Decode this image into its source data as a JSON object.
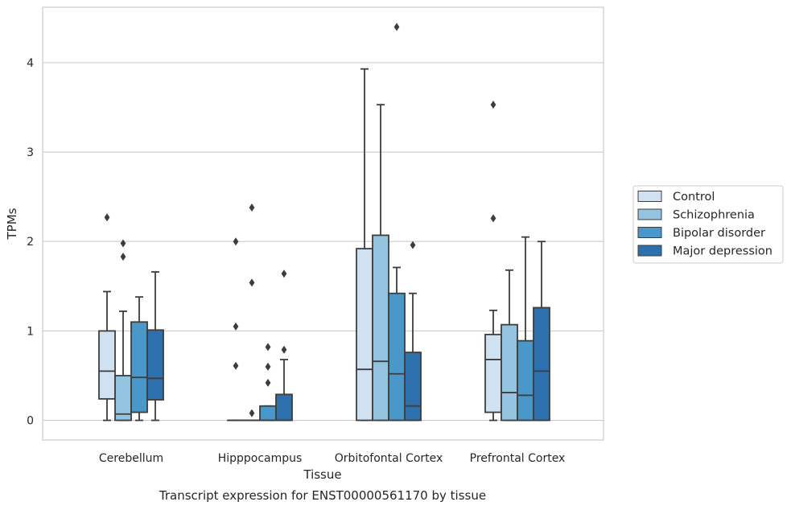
{
  "caption": "Transcript expression for ENST00000561170 by tissue",
  "chart_data": {
    "type": "box",
    "xlabel": "Tissue",
    "ylabel": "TPMs",
    "ylim": [
      -0.22,
      4.62
    ],
    "yticks": [
      0,
      1,
      2,
      3,
      4
    ],
    "grid": "horizontal",
    "legend_position": "right",
    "categories": [
      "Cerebellum",
      "Hipppocampus",
      "Orbitofontal Cortex",
      "Prefrontal Cortex"
    ],
    "series": [
      {
        "name": "Control",
        "color": "#d0e1f2",
        "boxes": [
          {
            "whislo": 0,
            "q1": 0.24,
            "med": 0.55,
            "q3": 1.0,
            "whishi": 1.44,
            "fliers": [
              2.27
            ]
          },
          {
            "whislo": 0,
            "q1": 0,
            "med": 0,
            "q3": 0,
            "whishi": 0,
            "fliers": [
              0.61,
              1.05,
              2.0
            ]
          },
          {
            "whislo": 0,
            "q1": 0,
            "med": 0.57,
            "q3": 1.92,
            "whishi": 3.93,
            "fliers": []
          },
          {
            "whislo": 0,
            "q1": 0.09,
            "med": 0.68,
            "q3": 0.96,
            "whishi": 1.23,
            "fliers": [
              2.26,
              3.53
            ]
          }
        ]
      },
      {
        "name": "Schizophrenia",
        "color": "#94c4df",
        "boxes": [
          {
            "whislo": 0,
            "q1": 0,
            "med": 0.07,
            "q3": 0.5,
            "whishi": 1.22,
            "fliers": [
              1.83,
              1.98
            ]
          },
          {
            "whislo": 0,
            "q1": 0,
            "med": 0,
            "q3": 0,
            "whishi": 0,
            "fliers": [
              0.08,
              1.54,
              2.38
            ]
          },
          {
            "whislo": 0,
            "q1": 0,
            "med": 0.66,
            "q3": 2.07,
            "whishi": 3.53,
            "fliers": []
          },
          {
            "whislo": 0,
            "q1": 0,
            "med": 0.31,
            "q3": 1.07,
            "whishi": 1.68,
            "fliers": []
          }
        ]
      },
      {
        "name": "Bipolar disorder",
        "color": "#4a98c9",
        "boxes": [
          {
            "whislo": 0,
            "q1": 0.09,
            "med": 0.48,
            "q3": 1.1,
            "whishi": 1.38,
            "fliers": []
          },
          {
            "whislo": 0,
            "q1": 0,
            "med": 0,
            "q3": 0.16,
            "whishi": 0.16,
            "fliers": [
              0.42,
              0.6,
              0.82
            ]
          },
          {
            "whislo": 0,
            "q1": 0,
            "med": 0.52,
            "q3": 1.42,
            "whishi": 1.71,
            "fliers": [
              4.4
            ]
          },
          {
            "whislo": 0,
            "q1": 0,
            "med": 0.28,
            "q3": 0.89,
            "whishi": 2.05,
            "fliers": []
          }
        ]
      },
      {
        "name": "Major depression",
        "color": "#2e6fad",
        "boxes": [
          {
            "whislo": 0,
            "q1": 0.23,
            "med": 0.47,
            "q3": 1.01,
            "whishi": 1.66,
            "fliers": []
          },
          {
            "whislo": 0,
            "q1": 0,
            "med": 0,
            "q3": 0.29,
            "whishi": 0.68,
            "fliers": [
              0.79,
              1.64
            ]
          },
          {
            "whislo": 0,
            "q1": 0,
            "med": 0.16,
            "q3": 0.76,
            "whishi": 1.42,
            "fliers": [
              1.96
            ]
          },
          {
            "whislo": 0,
            "q1": 0,
            "med": 0.55,
            "q3": 1.26,
            "whishi": 2.0,
            "fliers": []
          }
        ]
      }
    ]
  }
}
